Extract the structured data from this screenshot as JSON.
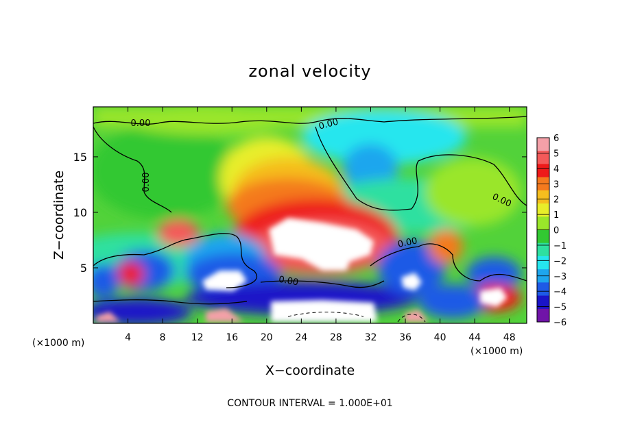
{
  "chart_data": {
    "type": "heatmap",
    "title": "zonal velocity",
    "xlabel": "X−coordinate",
    "ylabel": "Z−coordinate",
    "x_unit_left": "(×1000 m)",
    "x_unit_right": "(×1000 m)",
    "xlim": [
      0,
      50
    ],
    "ylim": [
      0,
      19.5
    ],
    "x_ticks": [
      4,
      8,
      12,
      16,
      20,
      24,
      28,
      32,
      36,
      40,
      44,
      48
    ],
    "y_ticks": [
      5,
      10,
      15
    ],
    "colorbar": {
      "ticks": [
        6,
        5,
        4,
        3,
        2,
        1,
        0,
        -1,
        -2,
        -3,
        -4,
        -5,
        -6
      ],
      "tick_labels": [
        "6",
        "5",
        "4",
        "3",
        "2",
        "1",
        "0",
        "−1",
        "−2",
        "−3",
        "−4",
        "−5",
        "−6"
      ],
      "colors": [
        "#f4a0a8",
        "#f45a5a",
        "#ee1a1a",
        "#f47a1e",
        "#f5be1e",
        "#e8ee2a",
        "#9ae62a",
        "#32c832",
        "#2ee0a0",
        "#26e6ee",
        "#1ea6ee",
        "#1e5ae6",
        "#1a14c8",
        "#7014a8"
      ]
    },
    "contour_labels": [
      "0.00",
      "0.00",
      "0.00",
      "0.00",
      "0.00",
      "0.00"
    ],
    "footer": "CONTOUR INTERVAL = 1.000E+01"
  }
}
